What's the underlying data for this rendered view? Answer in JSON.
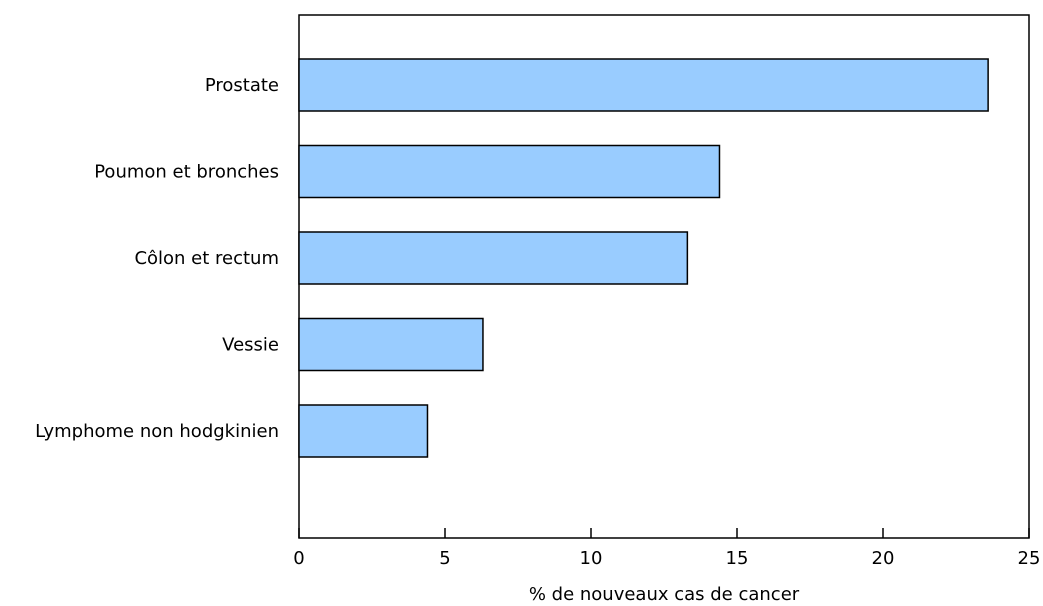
{
  "chart_data": {
    "type": "bar",
    "orientation": "horizontal",
    "categories": [
      "Prostate",
      "Poumon et bronches",
      "Côlon et rectum",
      "Vessie",
      "Lymphome non hodgkinien"
    ],
    "values": [
      23.6,
      14.4,
      13.3,
      6.3,
      4.4
    ],
    "xlabel": "% de nouveaux cas de cancer",
    "ylabel": "",
    "title": "",
    "xlim": [
      0,
      25
    ],
    "xticks": [
      0,
      5,
      10,
      15,
      20,
      25
    ],
    "tick_labels": [
      "0",
      "5",
      "10",
      "15",
      "20",
      "25"
    ],
    "grid": false,
    "legend": "none",
    "bar_color": "#99ccff",
    "bar_stroke": "#000000"
  }
}
